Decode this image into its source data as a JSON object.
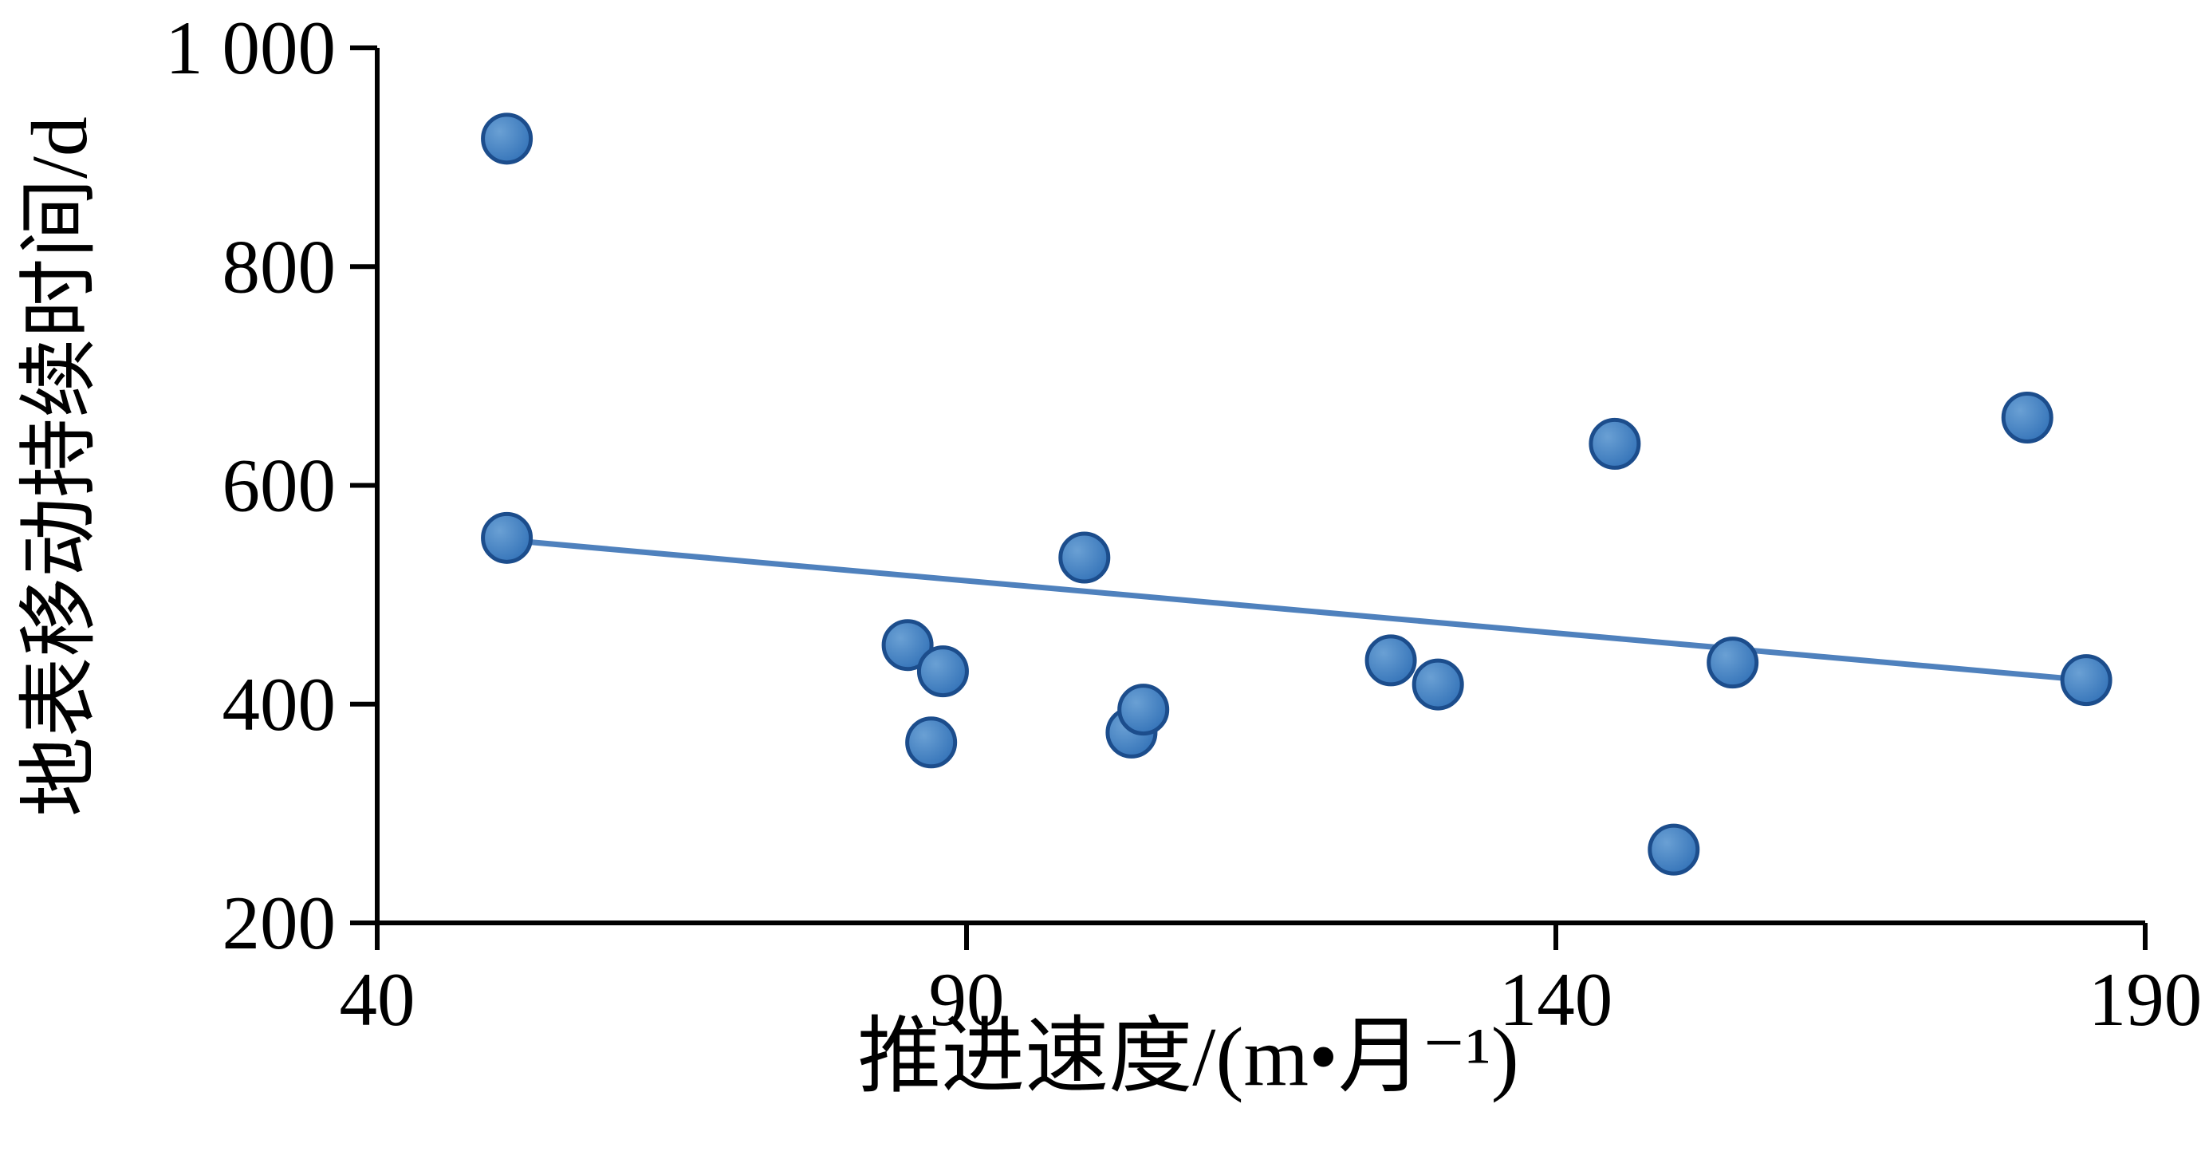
{
  "chart_data": {
    "type": "scatter",
    "title": "",
    "xlabel": "推进速度/(m•月⁻¹)",
    "ylabel": "地表移动持续时间/d",
    "xlim": [
      40,
      190
    ],
    "ylim": [
      200,
      1000
    ],
    "grid": false,
    "legend": "none",
    "x_ticks": [
      40,
      90,
      140,
      190
    ],
    "x_tick_labels": [
      "40",
      "90",
      "140",
      "190"
    ],
    "y_ticks": [
      200,
      400,
      600,
      800,
      1000
    ],
    "y_tick_labels": [
      "200",
      "400",
      "600",
      "800",
      "1 000"
    ],
    "points": [
      [
        51,
        917
      ],
      [
        51,
        552
      ],
      [
        85,
        454
      ],
      [
        88,
        430
      ],
      [
        87,
        365
      ],
      [
        100,
        534
      ],
      [
        104,
        374
      ],
      [
        105,
        395
      ],
      [
        126,
        440
      ],
      [
        130,
        418
      ],
      [
        145,
        638
      ],
      [
        150,
        267
      ],
      [
        155,
        438
      ],
      [
        180,
        662
      ],
      [
        185,
        422
      ]
    ],
    "trendline": {
      "x_start": 50,
      "y_start": 551,
      "x_end": 186,
      "y_end": 421
    },
    "colors": {
      "marker": "#2e6eb5",
      "marker_edge": "#1c4d8c",
      "marker_highlight": "#6aa0d4",
      "trend": "#4f81bd",
      "axis": "#000000",
      "text": "#000000",
      "background": "#ffffff"
    }
  }
}
